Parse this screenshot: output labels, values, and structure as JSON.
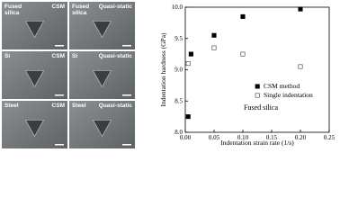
{
  "panels": [
    {
      "material": "Fused\nsilica",
      "method": "CSM"
    },
    {
      "material": "Fused\nsilica",
      "method": "Quasi-static"
    },
    {
      "material": "Si",
      "method": "CSM"
    },
    {
      "material": "Si",
      "method": "Quasi-static"
    },
    {
      "material": "Steel",
      "method": "CSM"
    },
    {
      "material": "Steel",
      "method": "Quasi-static"
    }
  ],
  "chart_data": {
    "type": "scatter",
    "xlabel": "Indentation strain rate (1/s)",
    "ylabel": "Indentation hardness (GPa)",
    "annotation": "Fused silica",
    "xlim": [
      0,
      0.25
    ],
    "xticks": [
      {
        "value": 0,
        "label": "0.00"
      },
      0.05,
      {
        "value": 0.1,
        "label": "0.10"
      },
      0.15,
      {
        "value": 0.2,
        "label": "0.20"
      },
      0.25
    ],
    "ylim": [
      8,
      10
    ],
    "yticks": [
      {
        "value": 8,
        "label": "8.0"
      },
      8.5,
      {
        "value": 9,
        "label": "9.0"
      },
      9.5,
      {
        "value": 10,
        "label": "10.0"
      }
    ],
    "legend": "right",
    "series": [
      {
        "name": "CSM method",
        "color": "#000000",
        "filled": true,
        "x": [
          0.005,
          0.01,
          0.05,
          0.1,
          0.2
        ],
        "values": [
          8.25,
          9.25,
          9.55,
          9.85,
          9.97
        ]
      },
      {
        "name": "Single indentation",
        "color": "#555555",
        "filled": false,
        "x": [
          0.005,
          0.05,
          0.1,
          0.2
        ],
        "values": [
          9.1,
          9.35,
          9.25,
          9.05
        ]
      }
    ]
  }
}
